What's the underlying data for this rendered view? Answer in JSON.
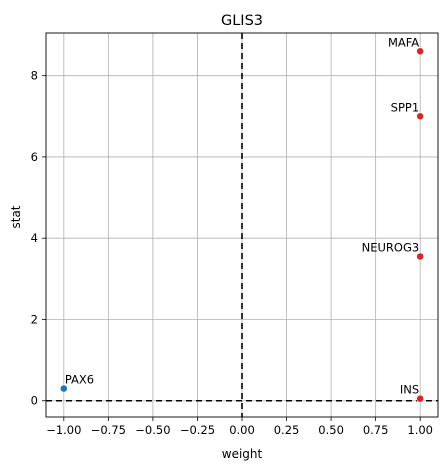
{
  "chart_data": {
    "type": "scatter",
    "title": "GLIS3",
    "xlabel": "weight",
    "ylabel": "stat",
    "xlim": [
      -1.1,
      1.1
    ],
    "ylim": [
      -0.4,
      9.05
    ],
    "xticks": [
      -1.0,
      -0.75,
      -0.5,
      -0.25,
      0.0,
      0.25,
      0.5,
      0.75,
      1.0
    ],
    "xtick_labels": [
      "−1.00",
      "−0.75",
      "−0.50",
      "−0.25",
      "0.00",
      "0.25",
      "0.50",
      "0.75",
      "1.00"
    ],
    "yticks": [
      0,
      2,
      4,
      6,
      8
    ],
    "ytick_labels": [
      "0",
      "2",
      "4",
      "6",
      "8"
    ],
    "grid": true,
    "reference_lines": {
      "x": 0,
      "y": 0,
      "style": "dashed"
    },
    "colors": {
      "positive": "#d62728",
      "negative": "#1f77b4"
    },
    "points": [
      {
        "label": "MAFA",
        "x": 1.0,
        "y": 8.6,
        "color": "#d62728",
        "label_align": "right"
      },
      {
        "label": "SPP1",
        "x": 1.0,
        "y": 7.0,
        "color": "#d62728",
        "label_align": "right"
      },
      {
        "label": "NEUROG3",
        "x": 1.0,
        "y": 3.55,
        "color": "#d62728",
        "label_align": "right"
      },
      {
        "label": "INS",
        "x": 1.0,
        "y": 0.05,
        "color": "#d62728",
        "label_align": "right"
      },
      {
        "label": "PAX6",
        "x": -1.0,
        "y": 0.3,
        "color": "#1f77b4",
        "label_align": "left"
      }
    ]
  }
}
